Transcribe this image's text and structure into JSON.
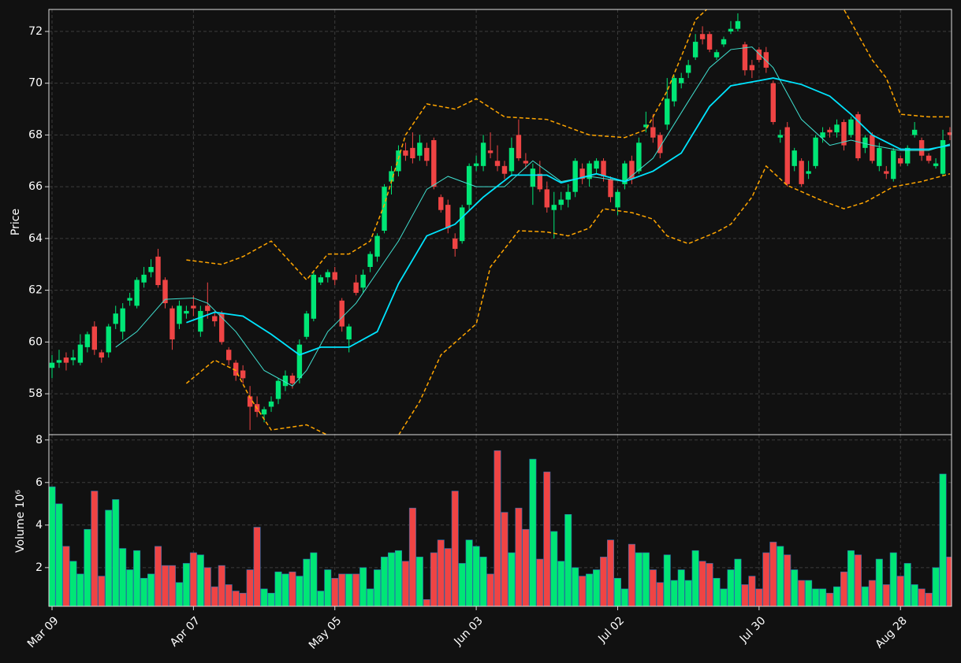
{
  "chart_data": {
    "type": "candlestick",
    "ylabel": "Price",
    "categories": [
      "Mar 09",
      null,
      null,
      null,
      null,
      null,
      null,
      null,
      null,
      null,
      null,
      null,
      null,
      null,
      null,
      null,
      null,
      null,
      null,
      null,
      "Apr 07",
      null,
      null,
      null,
      null,
      null,
      null,
      null,
      null,
      null,
      null,
      null,
      null,
      null,
      null,
      null,
      null,
      null,
      null,
      null,
      "May 05",
      null,
      null,
      null,
      null,
      null,
      null,
      null,
      null,
      null,
      null,
      null,
      null,
      null,
      null,
      null,
      null,
      null,
      null,
      null,
      "Jun 03",
      null,
      null,
      null,
      null,
      null,
      null,
      null,
      null,
      null,
      null,
      null,
      null,
      null,
      null,
      null,
      null,
      null,
      null,
      null,
      "Jul 02",
      null,
      null,
      null,
      null,
      null,
      null,
      null,
      null,
      null,
      null,
      null,
      null,
      null,
      null,
      null,
      null,
      null,
      null,
      null,
      "Jul 30",
      null,
      null,
      null,
      null,
      null,
      null,
      null,
      null,
      null,
      null,
      null,
      null,
      null,
      null,
      null,
      null,
      null,
      null,
      null,
      "Aug 28",
      null,
      null,
      null,
      null,
      null,
      null,
      null
    ],
    "open": [
      59.0,
      59.2,
      59.4,
      59.3,
      59.2,
      59.8,
      60.6,
      59.6,
      59.6,
      60.7,
      60.4,
      61.6,
      61.4,
      62.3,
      62.7,
      63.3,
      62.4,
      61.3,
      60.7,
      61.1,
      61.4,
      60.4,
      61.4,
      61.0,
      61.1,
      59.7,
      59.2,
      58.9,
      57.9,
      57.6,
      57.2,
      57.5,
      57.8,
      58.3,
      58.7,
      58.6,
      60.2,
      60.9,
      62.3,
      62.5,
      62.7,
      61.6,
      60.1,
      62.3,
      62.1,
      62.9,
      63.3,
      64.3,
      66.2,
      66.6,
      67.4,
      67.5,
      67.2,
      67.5,
      67.8,
      65.6,
      65.3,
      64.0,
      63.9,
      65.3,
      66.8,
      66.8,
      67.4,
      67.0,
      66.8,
      66.6,
      68.0,
      67.0,
      66.0,
      66.5,
      65.9,
      65.1,
      65.3,
      65.5,
      65.8,
      66.7,
      66.3,
      66.7,
      67.0,
      66.3,
      65.2,
      66.1,
      67.0,
      66.6,
      68.3,
      68.3,
      68.0,
      68.4,
      69.3,
      70.0,
      70.4,
      71.0,
      71.9,
      71.9,
      71.0,
      71.5,
      72.0,
      72.1,
      71.5,
      70.7,
      71.3,
      71.2,
      70.0,
      67.9,
      68.3,
      66.8,
      67.0,
      66.5,
      66.8,
      67.9,
      68.2,
      68.1,
      68.5,
      68.0,
      68.8,
      67.5,
      68.0,
      66.8,
      66.6,
      66.3,
      67.1,
      66.9,
      68.0,
      67.8,
      67.2,
      66.8,
      66.5,
      68.1
    ],
    "high": [
      59.5,
      59.7,
      59.6,
      59.7,
      60.3,
      60.4,
      60.8,
      59.7,
      60.7,
      61.4,
      61.5,
      61.9,
      62.5,
      62.9,
      63.2,
      63.6,
      62.5,
      61.4,
      61.6,
      61.4,
      61.8,
      61.4,
      62.3,
      61.2,
      61.2,
      59.8,
      59.3,
      59.1,
      58.3,
      57.9,
      57.5,
      57.9,
      58.6,
      58.9,
      58.8,
      60.1,
      61.2,
      62.7,
      62.6,
      62.8,
      62.9,
      61.7,
      60.7,
      62.6,
      62.8,
      63.5,
      64.2,
      66.1,
      66.8,
      67.6,
      67.7,
      68.1,
      68.0,
      67.7,
      67.9,
      65.7,
      65.5,
      64.2,
      65.3,
      66.9,
      67.2,
      68.0,
      68.1,
      67.6,
      67.0,
      67.9,
      68.6,
      67.3,
      66.9,
      67.0,
      66.2,
      65.8,
      65.8,
      66.1,
      67.1,
      66.9,
      67.0,
      67.1,
      67.1,
      66.4,
      65.9,
      67.0,
      67.2,
      67.9,
      68.9,
      68.8,
      68.1,
      70.2,
      70.3,
      70.4,
      70.9,
      71.9,
      72.2,
      72.0,
      71.3,
      71.8,
      72.4,
      72.7,
      71.6,
      70.9,
      71.4,
      71.4,
      70.1,
      68.2,
      68.5,
      67.5,
      67.1,
      67.0,
      68.0,
      68.3,
      68.3,
      68.6,
      68.6,
      68.7,
      68.9,
      68.0,
      68.1,
      67.7,
      66.8,
      67.5,
      67.2,
      67.6,
      68.5,
      67.9,
      67.3,
      67.1,
      68.2,
      68.3
    ],
    "low": [
      58.6,
      59.0,
      58.9,
      59.1,
      59.1,
      59.6,
      59.5,
      59.2,
      59.4,
      60.5,
      60.1,
      61.4,
      61.3,
      62.1,
      62.5,
      62.1,
      61.3,
      59.7,
      60.5,
      60.9,
      61.0,
      60.2,
      60.9,
      60.6,
      59.9,
      59.1,
      58.5,
      58.4,
      56.6,
      57.1,
      56.9,
      57.3,
      57.6,
      58.1,
      58.2,
      58.4,
      60.1,
      60.8,
      62.2,
      62.3,
      62.2,
      60.4,
      59.6,
      61.8,
      61.9,
      62.7,
      63.1,
      64.2,
      65.7,
      66.4,
      67.0,
      66.9,
      67.0,
      66.8,
      65.9,
      65.0,
      64.2,
      63.3,
      63.8,
      65.1,
      66.6,
      66.6,
      67.1,
      66.6,
      66.3,
      66.4,
      67.0,
      66.7,
      65.3,
      65.8,
      65.0,
      64.0,
      65.1,
      65.2,
      65.6,
      66.1,
      66.0,
      66.5,
      66.2,
      65.4,
      64.9,
      65.9,
      66.1,
      66.5,
      68.1,
      67.7,
      67.1,
      68.2,
      69.1,
      69.8,
      70.2,
      70.9,
      71.5,
      71.2,
      70.9,
      71.4,
      71.9,
      72.0,
      70.3,
      70.2,
      70.8,
      70.4,
      68.4,
      67.7,
      66.0,
      66.6,
      66.0,
      66.3,
      66.7,
      67.7,
      67.9,
      67.9,
      67.4,
      67.9,
      67.0,
      67.3,
      66.9,
      66.6,
      66.3,
      66.2,
      66.8,
      66.8,
      67.9,
      67.0,
      66.9,
      66.7,
      66.4,
      67.8
    ],
    "close": [
      59.2,
      59.3,
      59.2,
      59.4,
      59.9,
      60.3,
      59.7,
      59.4,
      60.6,
      61.1,
      61.3,
      61.7,
      62.4,
      62.6,
      62.9,
      62.2,
      61.5,
      60.1,
      61.4,
      61.2,
      61.3,
      61.2,
      61.2,
      60.8,
      60.0,
      59.3,
      58.7,
      58.6,
      57.5,
      57.3,
      57.4,
      57.7,
      58.5,
      58.7,
      58.4,
      59.9,
      61.1,
      62.6,
      62.5,
      62.7,
      62.4,
      60.6,
      60.6,
      61.9,
      62.6,
      63.4,
      64.1,
      66.0,
      66.6,
      67.4,
      67.2,
      67.1,
      67.7,
      67.0,
      66.0,
      65.1,
      64.4,
      63.6,
      65.2,
      66.8,
      66.9,
      67.7,
      67.3,
      66.8,
      66.5,
      67.5,
      67.1,
      66.9,
      66.7,
      65.9,
      65.2,
      65.3,
      65.5,
      65.8,
      67.0,
      66.3,
      66.9,
      67.0,
      66.4,
      65.6,
      65.8,
      66.9,
      66.3,
      67.7,
      68.4,
      67.9,
      67.3,
      69.4,
      70.2,
      70.2,
      70.7,
      71.6,
      71.7,
      71.3,
      71.2,
      71.7,
      72.1,
      72.4,
      70.5,
      70.5,
      70.9,
      70.6,
      68.5,
      68.0,
      66.1,
      67.4,
      66.1,
      66.6,
      67.9,
      68.1,
      68.1,
      68.4,
      67.6,
      68.6,
      67.1,
      67.9,
      67.0,
      67.5,
      66.5,
      67.4,
      66.9,
      67.5,
      68.2,
      67.2,
      67.0,
      66.9,
      67.8,
      68.0
    ],
    "up_color": "#00e676",
    "down_color": "#ef4444",
    "indicators": [
      {
        "style": "thin",
        "color": "#40e0d0",
        "x": [
          9,
          12,
          16,
          20,
          22,
          26,
          30,
          34,
          36,
          39,
          43,
          46,
          49,
          53,
          56,
          60,
          64,
          68,
          72,
          76,
          81,
          85,
          90,
          93,
          96,
          99,
          102,
          106,
          110,
          113,
          116,
          120,
          124,
          127
        ],
        "values": [
          59.8,
          60.4,
          61.65,
          61.7,
          61.5,
          60.4,
          58.9,
          58.3,
          58.9,
          60.4,
          61.5,
          62.7,
          63.9,
          65.9,
          66.4,
          66.0,
          66.0,
          67.0,
          66.2,
          66.4,
          66.2,
          67.1,
          69.3,
          70.6,
          71.3,
          71.4,
          70.6,
          68.6,
          67.6,
          67.8,
          67.6,
          67.4,
          67.4,
          67.65
        ]
      },
      {
        "style": "thick",
        "color": "#00e5ff",
        "x": [
          19,
          23,
          27,
          31,
          35,
          38,
          42,
          46,
          49,
          53,
          57,
          61,
          65,
          70,
          72,
          77,
          81,
          85,
          89,
          93,
          96,
          100,
          102,
          106,
          110,
          113,
          116,
          120,
          124,
          127
        ],
        "values": [
          60.75,
          61.15,
          61.0,
          60.3,
          59.5,
          59.8,
          59.8,
          60.4,
          62.25,
          64.1,
          64.55,
          65.6,
          66.45,
          66.45,
          66.15,
          66.5,
          66.2,
          66.6,
          67.3,
          69.1,
          69.9,
          70.1,
          70.2,
          69.95,
          69.5,
          68.8,
          68.0,
          67.45,
          67.45,
          67.6
        ]
      },
      {
        "style": "dashed",
        "color": "#ffa500",
        "x": [
          19,
          24,
          27,
          31,
          36,
          39,
          42,
          45,
          47,
          50,
          53,
          57,
          60,
          64,
          70,
          73,
          76,
          81,
          84,
          87,
          90,
          91,
          94,
          99,
          105,
          112,
          116,
          118,
          120,
          124,
          127
        ],
        "values": [
          63.17,
          63.0,
          63.3,
          63.9,
          62.4,
          63.4,
          63.4,
          63.9,
          65.3,
          68.0,
          69.2,
          69.0,
          69.4,
          68.7,
          68.6,
          68.3,
          68.0,
          67.9,
          68.2,
          69.7,
          71.7,
          72.45,
          73.2,
          74.0,
          74.0,
          72.85,
          70.9,
          70.2,
          68.8,
          68.7,
          68.7
        ]
      },
      {
        "style": "dashed",
        "color": "#ffa500",
        "x": [
          19,
          23,
          26,
          28,
          31,
          36,
          39,
          44,
          49,
          52,
          55,
          60,
          62,
          66,
          70,
          73,
          76,
          78,
          82,
          85,
          87,
          90,
          94,
          96,
          99,
          101,
          104,
          109,
          112,
          115,
          119,
          123,
          127
        ],
        "values": [
          58.4,
          59.3,
          58.9,
          57.85,
          56.6,
          56.8,
          56.4,
          55.6,
          56.4,
          57.7,
          59.5,
          60.7,
          62.9,
          64.3,
          64.25,
          64.1,
          64.4,
          65.15,
          65.0,
          64.75,
          64.1,
          63.8,
          64.25,
          64.55,
          65.6,
          66.8,
          66.05,
          65.45,
          65.15,
          65.4,
          66.0,
          66.2,
          66.5
        ]
      }
    ],
    "ylim": [
      56.42,
      72.85
    ],
    "yticks": [
      58,
      60,
      62,
      64,
      66,
      68,
      70,
      72
    ],
    "grid": true,
    "volume": {
      "ylabel": "Volume  10⁶",
      "values": [
        5.8,
        5.0,
        3.0,
        2.3,
        1.7,
        3.8,
        5.6,
        1.6,
        4.7,
        5.2,
        2.9,
        1.9,
        2.8,
        1.5,
        1.7,
        3.0,
        2.1,
        2.1,
        1.3,
        2.2,
        2.7,
        2.6,
        2.0,
        1.1,
        2.1,
        1.2,
        0.9,
        0.8,
        1.9,
        3.9,
        1.0,
        0.8,
        1.8,
        1.7,
        1.8,
        1.6,
        2.4,
        2.7,
        0.9,
        1.9,
        1.5,
        1.7,
        1.7,
        1.7,
        2.0,
        1.0,
        1.9,
        2.5,
        2.7,
        2.8,
        2.3,
        4.8,
        2.5,
        0.5,
        2.7,
        3.3,
        2.9,
        5.6,
        2.2,
        3.3,
        3.0,
        2.5,
        1.7,
        7.5,
        4.6,
        2.7,
        4.8,
        3.8,
        7.1,
        2.4,
        6.5,
        3.7,
        2.3,
        4.5,
        2.0,
        1.6,
        1.7,
        1.9,
        2.5,
        3.3,
        1.5,
        1.0,
        3.1,
        2.7,
        2.7,
        1.9,
        1.3,
        2.6,
        1.4,
        1.9,
        1.4,
        2.8,
        2.3,
        2.2,
        1.5,
        1.0,
        1.9,
        2.4,
        1.2,
        1.6,
        1.0,
        2.7,
        3.2,
        3.0,
        2.6,
        1.9,
        1.4,
        1.4,
        1.0,
        1.0,
        0.8,
        1.1,
        1.8,
        2.8,
        2.6,
        1.1,
        1.4,
        2.4,
        1.2,
        2.7,
        1.6,
        2.2,
        1.2,
        1.0,
        0.8,
        2.0,
        6.4,
        2.5
      ],
      "ylim": [
        0.18,
        8.25
      ],
      "yticks": [
        2,
        4,
        6,
        8
      ]
    }
  }
}
